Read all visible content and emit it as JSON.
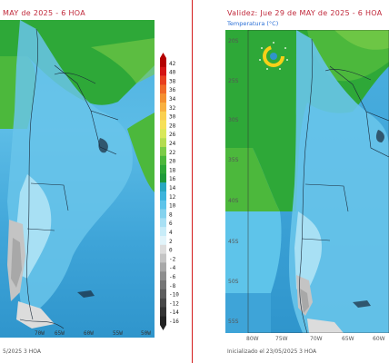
{
  "left_panel": {
    "title": "MAY de 2025 - 6 HOA",
    "lon_labels": [
      "70W",
      "65W",
      "60W",
      "55W",
      "50W"
    ],
    "init_text": "5/2025 3 HOA"
  },
  "right_panel": {
    "title": "Validez: Jue 29 de MAY de 2025 - 6 HOA",
    "subtitle": "Temperatura (°C)",
    "lat_labels": [
      "20S",
      "25S",
      "30S",
      "35S",
      "40S",
      "45S",
      "50S",
      "55S"
    ],
    "lon_labels": [
      "80W",
      "75W",
      "70W",
      "65W",
      "60W"
    ],
    "init_text": "Inicializado el 23/05/2025 3 HOA"
  },
  "colorbar": {
    "labels": [
      "42",
      "40",
      "38",
      "36",
      "34",
      "32",
      "30",
      "28",
      "26",
      "24",
      "22",
      "20",
      "18",
      "16",
      "14",
      "12",
      "10",
      "8",
      "6",
      "4",
      "2",
      "0",
      "-2",
      "-4",
      "-6",
      "-8",
      "-10",
      "-12",
      "-14",
      "-16"
    ],
    "colors": [
      "#b40000",
      "#d41414",
      "#e84020",
      "#f06a28",
      "#f49030",
      "#f8b040",
      "#fad050",
      "#f6e058",
      "#d8e85a",
      "#b4dc50",
      "#7ccc48",
      "#4cb83c",
      "#2ea838",
      "#1f9a3a",
      "#29a8c0",
      "#3cb4dc",
      "#5ec4ea",
      "#84d2ee",
      "#a8e0f4",
      "#c8ecf8",
      "#e2f4fa",
      "#dcdcdc",
      "#c4c4c4",
      "#a8a8a8",
      "#8e8e8e",
      "#767676",
      "#5e5e5e",
      "#484848",
      "#343434",
      "#222222"
    ]
  },
  "logo": {
    "icon": "smn-logo-icon"
  }
}
